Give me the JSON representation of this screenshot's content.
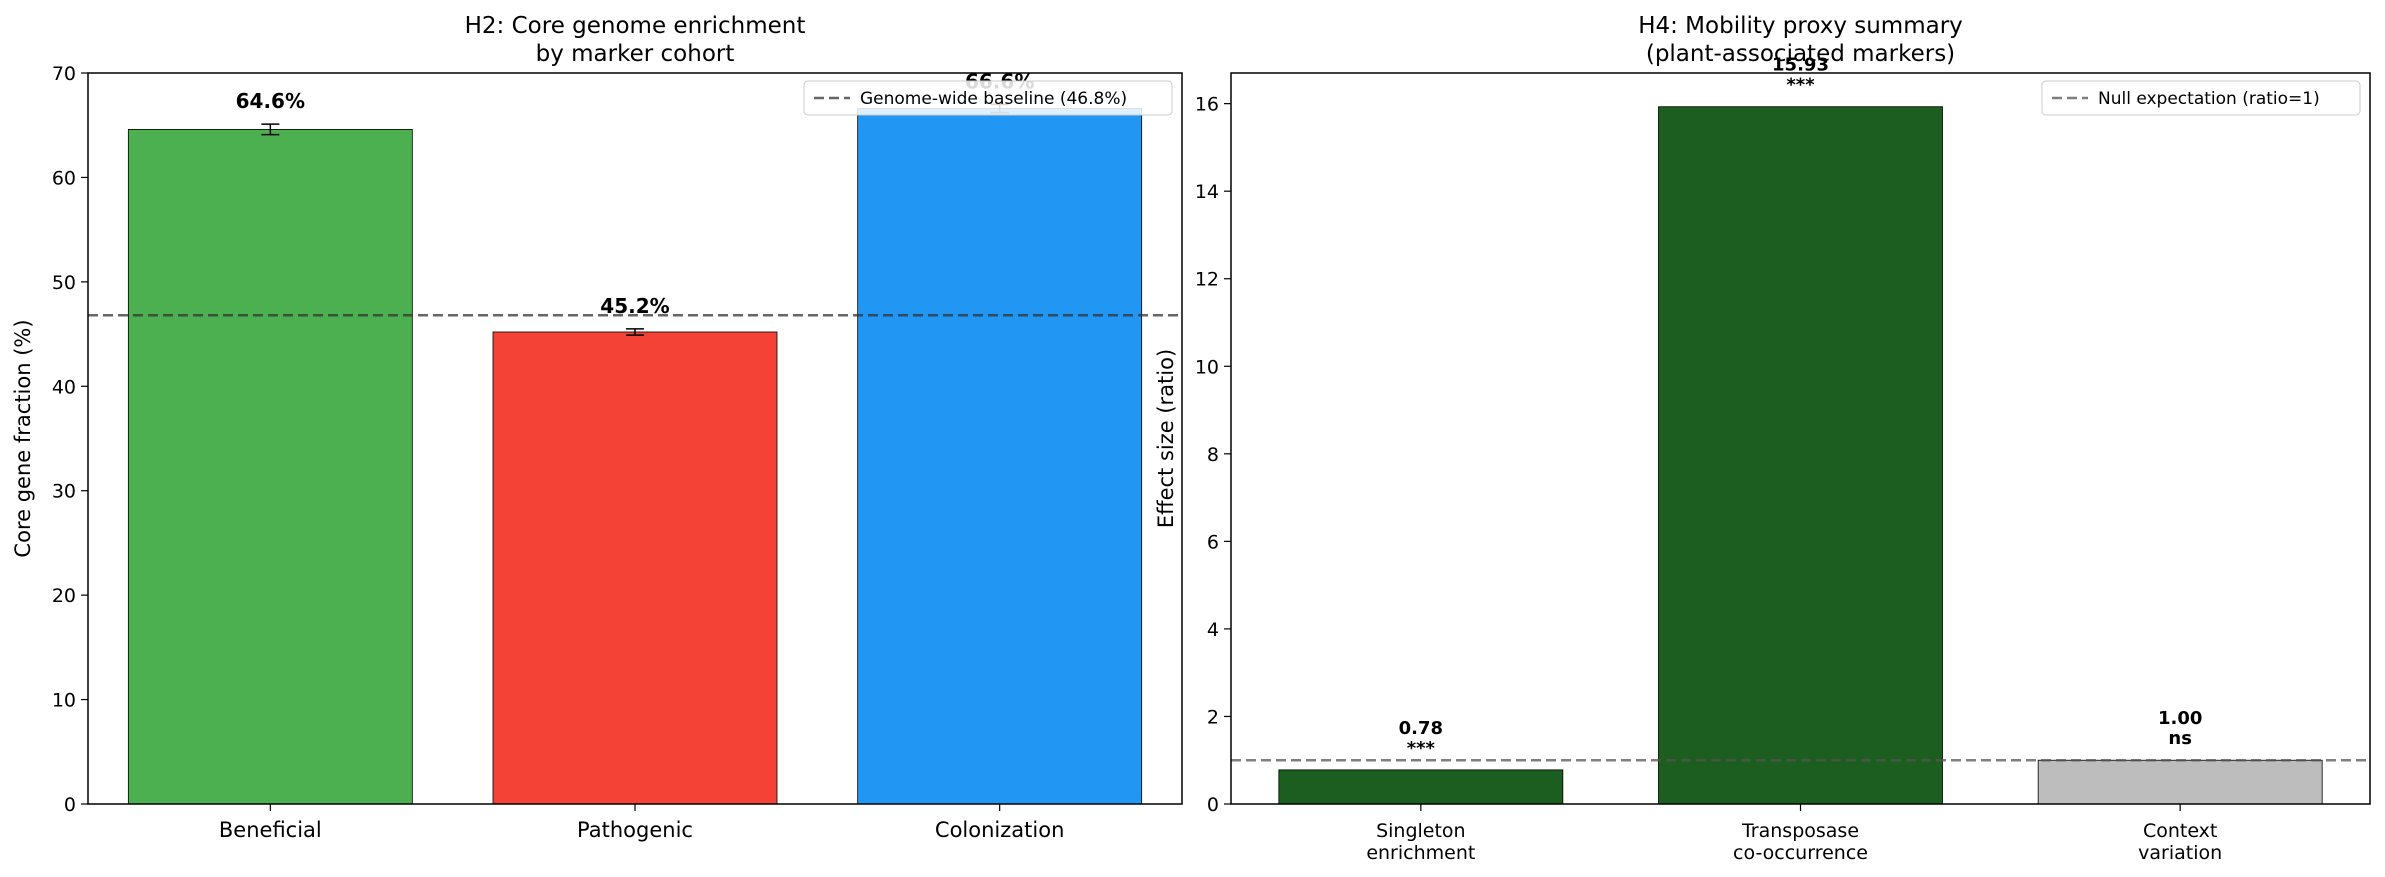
{
  "chart_data": [
    {
      "type": "bar",
      "title": "H2: Core genome enrichment\nby marker cohort",
      "xlabel": "",
      "ylabel": "Core gene fraction (%)",
      "ylim": [
        0,
        70
      ],
      "yticks": [
        "0",
        "10",
        "20",
        "30",
        "40",
        "50",
        "60",
        "70"
      ],
      "categories": [
        "Beneficial",
        "Pathogenic",
        "Colonization"
      ],
      "values": [
        64.6,
        45.2,
        66.6
      ],
      "errors": [
        0.5,
        0.3,
        0.4
      ],
      "bar_labels": [
        "64.6%",
        "45.2%",
        "66.6%"
      ],
      "colors": [
        "#4caf50",
        "#f44336",
        "#2196f3"
      ],
      "baseline": {
        "value": 46.8,
        "label": "Genome-wide baseline (46.8%)",
        "color": "#333333"
      },
      "legend": "top-right",
      "grid": false
    },
    {
      "type": "bar",
      "title": "H4: Mobility proxy summary\n(plant-associated markers)",
      "xlabel": "",
      "ylabel": "Effect size (ratio)",
      "ylim": [
        0,
        16.7
      ],
      "yticks": [
        "0",
        "2",
        "4",
        "6",
        "8",
        "10",
        "12",
        "14",
        "16"
      ],
      "categories": [
        "Singleton\nenrichment",
        "Transposase\nco-occurrence",
        "Context\nvariation"
      ],
      "values": [
        0.78,
        15.93,
        1.0
      ],
      "bar_labels": [
        "0.78\n***",
        "15.93\n***",
        "1.00\nns"
      ],
      "colors": [
        "#1b5e20",
        "#1b5e20",
        "#bdbdbd"
      ],
      "baseline": {
        "value": 1,
        "label": "Null expectation (ratio=1)",
        "color": "#555555"
      },
      "legend": "top-right",
      "grid": false
    }
  ]
}
